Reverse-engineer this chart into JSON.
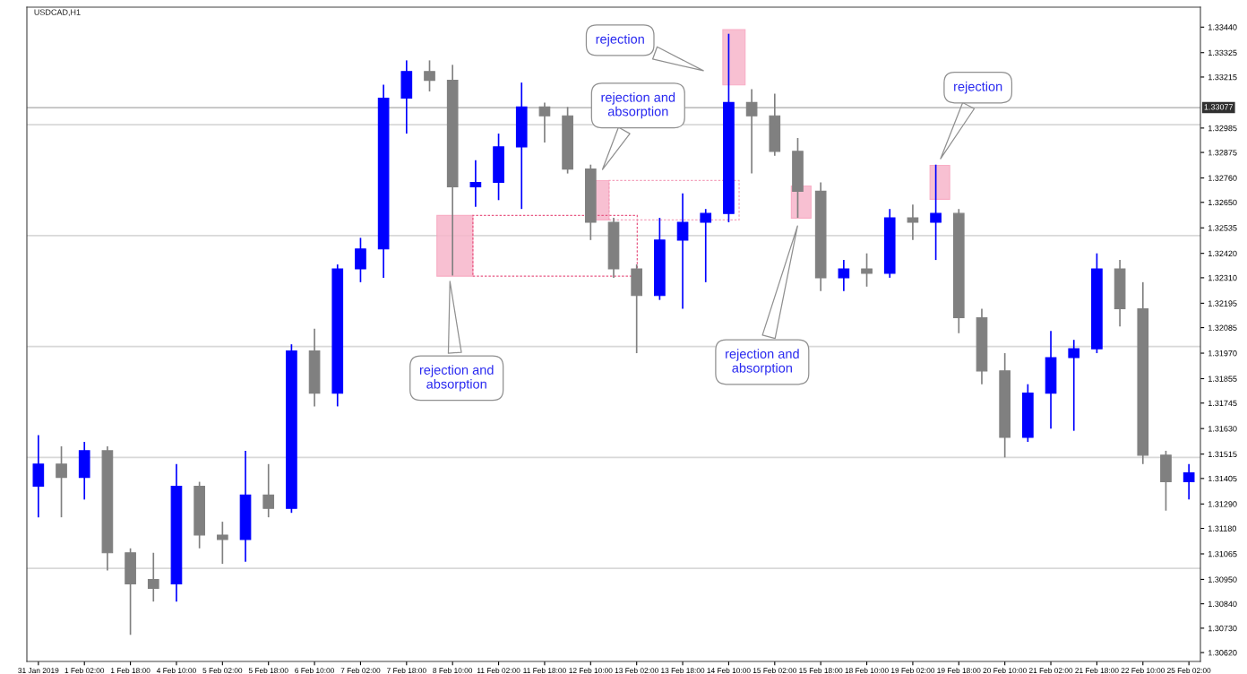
{
  "chart_data": {
    "type": "candlestick",
    "title": "USDCAD,H1",
    "categories": [
      "31 Jan 2019",
      null,
      "1 Feb 02:00",
      null,
      "1 Feb 18:00",
      null,
      "4 Feb 10:00",
      null,
      "5 Feb 02:00",
      null,
      "5 Feb 18:00",
      null,
      "6 Feb 10:00",
      null,
      "7 Feb 02:00",
      null,
      "7 Feb 18:00",
      null,
      "8 Feb 10:00",
      null,
      "11 Feb 02:00",
      null,
      "11 Feb 18:00",
      null,
      "12 Feb 10:00",
      null,
      "13 Feb 02:00",
      null,
      "13 Feb 18:00",
      null,
      "14 Feb 10:00",
      null,
      "15 Feb 02:00",
      null,
      "15 Feb 18:00",
      null,
      "18 Feb 10:00",
      null,
      "19 Feb 02:00",
      null,
      "19 Feb 18:00",
      null,
      "20 Feb 10:00",
      null,
      "21 Feb 02:00",
      null,
      "21 Feb 18:00",
      null,
      "22 Feb 10:00",
      null,
      "25 Feb 02:00"
    ],
    "ohlc": [
      [
        1.3137,
        1.316,
        1.3123,
        1.3147
      ],
      [
        1.3147,
        1.3155,
        1.3123,
        1.3141
      ],
      [
        1.3141,
        1.3157,
        1.3131,
        1.3153
      ],
      [
        1.3153,
        1.3155,
        1.3099,
        1.3107
      ],
      [
        1.3107,
        1.3109,
        1.307,
        1.3093
      ],
      [
        1.3095,
        1.3107,
        1.3085,
        1.3091
      ],
      [
        1.3093,
        1.3147,
        1.3085,
        1.3137
      ],
      [
        1.3137,
        1.3139,
        1.3109,
        1.3115
      ],
      [
        1.3115,
        1.3121,
        1.3102,
        1.3113
      ],
      [
        1.3113,
        1.3153,
        1.3103,
        1.3133
      ],
      [
        1.3133,
        1.3147,
        1.3123,
        1.3127
      ],
      [
        1.3127,
        1.3201,
        1.3125,
        1.3198
      ],
      [
        1.3198,
        1.3208,
        1.3173,
        1.3179
      ],
      [
        1.3179,
        1.3237,
        1.3173,
        1.3235
      ],
      [
        1.3235,
        1.3249,
        1.3229,
        1.3244
      ],
      [
        1.3244,
        1.3318,
        1.3231,
        1.3312
      ],
      [
        1.3312,
        1.3329,
        1.3296,
        1.3324
      ],
      [
        1.3324,
        1.3329,
        1.3315,
        1.332
      ],
      [
        1.332,
        1.3327,
        1.3232,
        1.3272
      ],
      [
        1.3272,
        1.3284,
        1.3263,
        1.3274
      ],
      [
        1.3274,
        1.3296,
        1.3266,
        1.329
      ],
      [
        1.329,
        1.3319,
        1.3262,
        1.3308
      ],
      [
        1.3308,
        1.331,
        1.3292,
        1.3304
      ],
      [
        1.3304,
        1.3308,
        1.3278,
        1.328
      ],
      [
        1.328,
        1.3282,
        1.3248,
        1.3256
      ],
      [
        1.3256,
        1.3258,
        1.3231,
        1.3235
      ],
      [
        1.3235,
        1.3237,
        1.3197,
        1.3223
      ],
      [
        1.3223,
        1.3258,
        1.3221,
        1.3248
      ],
      [
        1.3248,
        1.3269,
        1.3217,
        1.3256
      ],
      [
        1.3256,
        1.3262,
        1.3229,
        1.326
      ],
      [
        1.326,
        1.3341,
        1.3256,
        1.331
      ],
      [
        1.331,
        1.3316,
        1.3278,
        1.3304
      ],
      [
        1.3304,
        1.3314,
        1.3286,
        1.3288
      ],
      [
        1.3288,
        1.3294,
        1.3258,
        1.327
      ],
      [
        1.327,
        1.3274,
        1.3225,
        1.3231
      ],
      [
        1.3231,
        1.3239,
        1.3225,
        1.3235
      ],
      [
        1.3235,
        1.3242,
        1.3227,
        1.3233
      ],
      [
        1.3233,
        1.3262,
        1.3231,
        1.3258
      ],
      [
        1.3258,
        1.3264,
        1.3248,
        1.3256
      ],
      [
        1.3256,
        1.3282,
        1.3239,
        1.326
      ],
      [
        1.326,
        1.3262,
        1.3206,
        1.3213
      ],
      [
        1.3213,
        1.3217,
        1.3183,
        1.3189
      ],
      [
        1.3189,
        1.3197,
        1.315,
        1.3159
      ],
      [
        1.3159,
        1.3183,
        1.3157,
        1.3179
      ],
      [
        1.3179,
        1.3207,
        1.3163,
        1.3195
      ],
      [
        1.3195,
        1.3203,
        1.3162,
        1.3199
      ],
      [
        1.3199,
        1.3242,
        1.3197,
        1.3235
      ],
      [
        1.3235,
        1.3239,
        1.3209,
        1.3217
      ],
      [
        1.3217,
        1.3229,
        1.3147,
        1.3151
      ],
      [
        1.3151,
        1.3153,
        1.3126,
        1.3139
      ],
      [
        1.3139,
        1.3147,
        1.3131,
        1.3143
      ]
    ],
    "colors": [
      "#0000ff",
      "#808080",
      "#0000ff",
      "#808080",
      "#808080",
      "#808080",
      "#0000ff",
      "#808080",
      "#808080",
      "#0000ff",
      "#808080",
      "#0000ff",
      "#808080",
      "#0000ff",
      "#0000ff",
      "#0000ff",
      "#0000ff",
      "#808080",
      "#808080",
      "#0000ff",
      "#0000ff",
      "#0000ff",
      "#808080",
      "#808080",
      "#808080",
      "#808080",
      "#808080",
      "#0000ff",
      "#0000ff",
      "#0000ff",
      "#0000ff",
      "#808080",
      "#808080",
      "#808080",
      "#808080",
      "#0000ff",
      "#808080",
      "#0000ff",
      "#808080",
      "#0000ff",
      "#808080",
      "#808080",
      "#808080",
      "#0000ff",
      "#0000ff",
      "#0000ff",
      "#0000ff",
      "#808080",
      "#808080",
      "#808080",
      "#0000ff"
    ],
    "ylim": [
      1.3058,
      1.3353
    ],
    "yticks": [
      {
        "value": 1.3344,
        "label": "1.33440"
      },
      {
        "value": 1.33325,
        "label": "1.33325"
      },
      {
        "value": 1.33215,
        "label": "1.33215"
      },
      {
        "value": 1.32985,
        "label": "1.32985"
      },
      {
        "value": 1.32875,
        "label": "1.32875"
      },
      {
        "value": 1.3276,
        "label": "1.32760"
      },
      {
        "value": 1.3265,
        "label": "1.32650"
      },
      {
        "value": 1.32535,
        "label": "1.32535"
      },
      {
        "value": 1.3242,
        "label": "1.32420"
      },
      {
        "value": 1.3231,
        "label": "1.32310"
      },
      {
        "value": 1.32195,
        "label": "1.32195"
      },
      {
        "value": 1.32085,
        "label": "1.32085"
      },
      {
        "value": 1.3197,
        "label": "1.31970"
      },
      {
        "value": 1.31855,
        "label": "1.31855"
      },
      {
        "value": 1.31745,
        "label": "1.31745"
      },
      {
        "value": 1.3163,
        "label": "1.31630"
      },
      {
        "value": 1.31515,
        "label": "1.31515"
      },
      {
        "value": 1.31405,
        "label": "1.31405"
      },
      {
        "value": 1.3129,
        "label": "1.31290"
      },
      {
        "value": 1.3118,
        "label": "1.31180"
      },
      {
        "value": 1.31065,
        "label": "1.31065"
      },
      {
        "value": 1.3095,
        "label": "1.30950"
      },
      {
        "value": 1.3084,
        "label": "1.30840"
      },
      {
        "value": 1.3073,
        "label": "1.30730"
      },
      {
        "value": 1.3062,
        "label": "1.30620"
      }
    ],
    "ref_lines": [
      {
        "axis": "y",
        "value": 1.33077,
        "label": "1.33077",
        "color": "#c0c0c0"
      },
      {
        "axis": "y",
        "value": 1.33,
        "color": "#d8d8d8"
      },
      {
        "axis": "y",
        "value": 1.325,
        "color": "#d8d8d8"
      },
      {
        "axis": "y",
        "value": 1.32,
        "color": "#d8d8d8"
      },
      {
        "axis": "y",
        "value": 1.315,
        "color": "#d8d8d8"
      },
      {
        "axis": "y",
        "value": 1.31,
        "color": "#d8d8d8"
      }
    ],
    "annotations": [
      "rejection and\nabsorption",
      "rejection",
      "rejection and\nabsorption",
      "rejection and\nabsorption",
      "rejection"
    ]
  }
}
